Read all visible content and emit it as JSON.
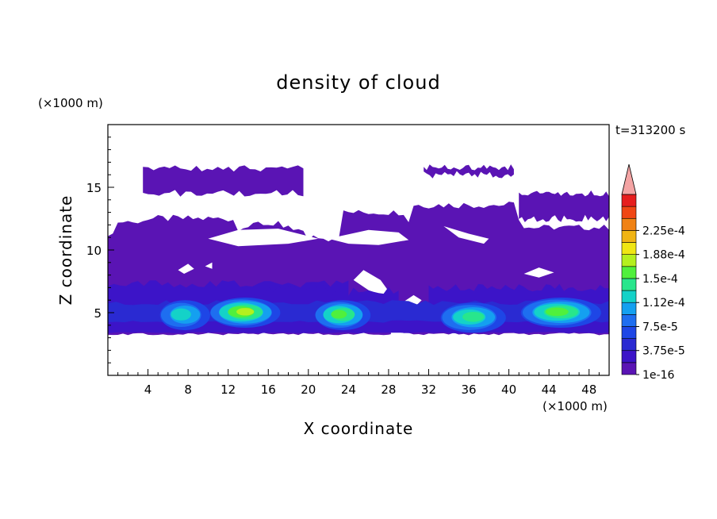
{
  "chart_data": {
    "type": "heatmap",
    "title": "density of cloud",
    "xlabel": "X coordinate",
    "ylabel": "Z coordinate",
    "x_unit": "(×1000 m)",
    "y_unit": "(×1000 m)",
    "time_label": "t=313200 s",
    "xlim": [
      0,
      50
    ],
    "ylim": [
      0,
      20
    ],
    "x_ticks": [
      4,
      8,
      12,
      16,
      20,
      24,
      28,
      32,
      36,
      40,
      44,
      48
    ],
    "y_ticks": [
      5,
      10,
      15
    ],
    "colorbar": {
      "labels": [
        "1e-16",
        "3.75e-5",
        "7.5e-5",
        "1.12e-4",
        "1.5e-4",
        "1.88e-4",
        "2.25e-4"
      ],
      "levels": [
        "1e-16",
        "1.88e-5",
        "3.75e-5",
        "5.63e-5",
        "7.5e-5",
        "9.38e-5",
        "1.12e-4",
        "1.31e-4",
        "1.5e-4",
        "1.69e-4",
        "1.88e-4",
        "2.06e-4",
        "2.25e-4",
        "2.44e-4"
      ],
      "colors": [
        "#5a14b4",
        "#3c14c8",
        "#2a2ad2",
        "#1e46e6",
        "#1e6ef0",
        "#14a0f0",
        "#14d2c8",
        "#28e68c",
        "#50f03c",
        "#b4f01e",
        "#f0e614",
        "#f0b414",
        "#f08214",
        "#f04614",
        "#e61e1e"
      ],
      "extend_color": "#f4a4a4"
    },
    "features": {
      "cloud_base_km": 3.3,
      "main_top_km": 11.5,
      "high_cloud_patches_km": [
        {
          "x": [
            3.5,
            19.5
          ],
          "z": [
            14.5,
            16.5
          ]
        },
        {
          "x": [
            31.5,
            40.5
          ],
          "z": [
            16.0,
            16.6
          ]
        },
        {
          "x": [
            41,
            50
          ],
          "z": [
            12.5,
            14.5
          ]
        }
      ],
      "dense_cores": [
        {
          "x": [
            5,
            10
          ],
          "z_peak": 5.0,
          "max_level": 4
        },
        {
          "x": [
            10,
            17
          ],
          "z_peak": 5.2,
          "max_level": 7
        },
        {
          "x": [
            20.5,
            26
          ],
          "z_peak": 5.0,
          "max_level": 6
        },
        {
          "x": [
            33,
            39.5
          ],
          "z_peak": 4.8,
          "max_level": 5
        },
        {
          "x": [
            41,
            49
          ],
          "z_peak": 5.2,
          "max_level": 6
        }
      ]
    }
  }
}
